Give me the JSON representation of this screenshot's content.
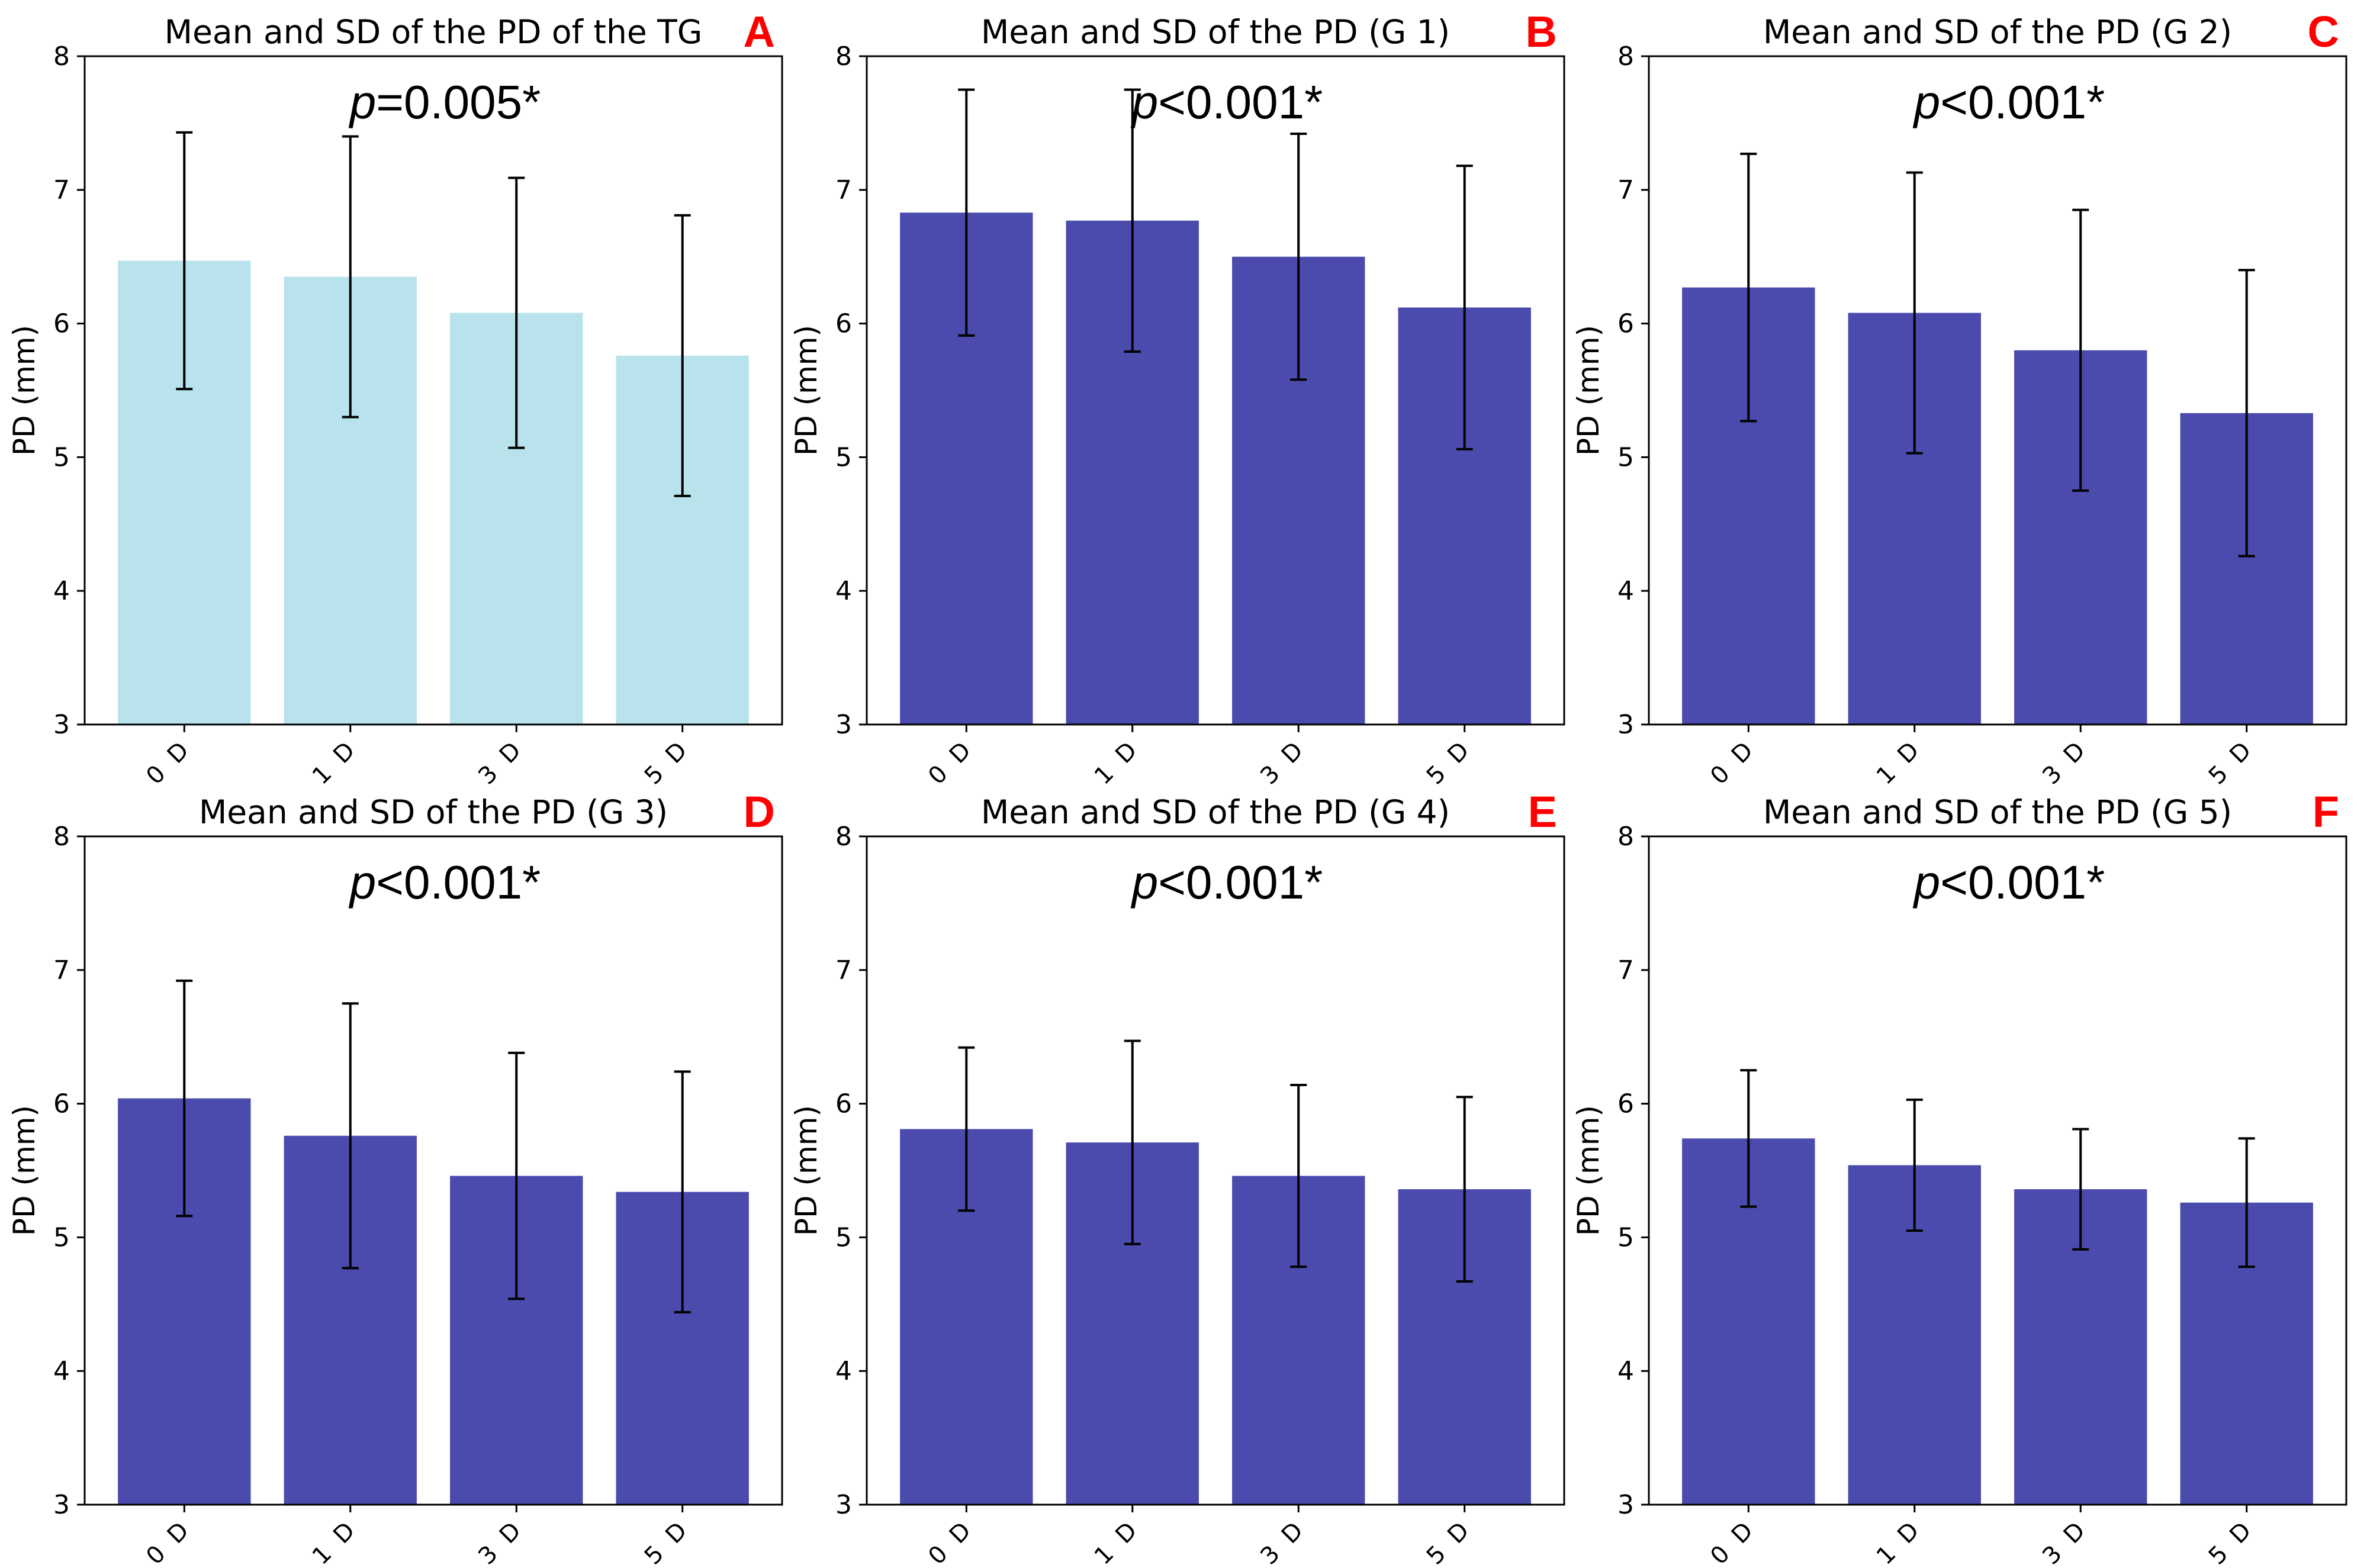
{
  "chart_data": [
    {
      "type": "bar",
      "panel_label": "A",
      "title": "Mean and SD of the PD of the TG",
      "annotation": {
        "italic": "p",
        "rest": "=0.005*"
      },
      "categories": [
        "0 D",
        "1 D",
        "3 D",
        "5 D"
      ],
      "values": [
        6.47,
        6.35,
        6.08,
        5.76
      ],
      "errors": [
        0.96,
        1.05,
        1.01,
        1.05
      ],
      "ylabel": "PD (mm)",
      "ylim": [
        3,
        8
      ],
      "yticks": [
        "3",
        "4",
        "5",
        "6",
        "7",
        "8"
      ],
      "bar_color": "#b9e3ec"
    },
    {
      "type": "bar",
      "panel_label": "B",
      "title": "Mean and SD of the PD (G 1)",
      "annotation": {
        "italic": "p",
        "rest": "<0.001*"
      },
      "categories": [
        "0 D",
        "1 D",
        "3 D",
        "5 D"
      ],
      "values": [
        6.83,
        6.77,
        6.5,
        6.12
      ],
      "errors": [
        0.92,
        0.98,
        0.92,
        1.06
      ],
      "ylabel": "PD (mm)",
      "ylim": [
        3,
        8
      ],
      "yticks": [
        "3",
        "4",
        "5",
        "6",
        "7",
        "8"
      ],
      "bar_color": "#4b4bad"
    },
    {
      "type": "bar",
      "panel_label": "C",
      "title": "Mean and SD of the PD (G 2)",
      "annotation": {
        "italic": "p",
        "rest": "<0.001*"
      },
      "categories": [
        "0 D",
        "1 D",
        "3 D",
        "5 D"
      ],
      "values": [
        6.27,
        6.08,
        5.8,
        5.33
      ],
      "errors": [
        1.0,
        1.05,
        1.05,
        1.07
      ],
      "ylabel": "PD (mm)",
      "ylim": [
        3,
        8
      ],
      "yticks": [
        "3",
        "4",
        "5",
        "6",
        "7",
        "8"
      ],
      "bar_color": "#4b4bad"
    },
    {
      "type": "bar",
      "panel_label": "D",
      "title": "Mean and SD of the PD (G 3)",
      "annotation": {
        "italic": "p",
        "rest": "<0.001*"
      },
      "categories": [
        "0 D",
        "1 D",
        "3 D",
        "5 D"
      ],
      "values": [
        6.04,
        5.76,
        5.46,
        5.34
      ],
      "errors": [
        0.88,
        0.99,
        0.92,
        0.9
      ],
      "ylabel": "PD (mm)",
      "ylim": [
        3,
        8
      ],
      "yticks": [
        "3",
        "4",
        "5",
        "6",
        "7",
        "8"
      ],
      "bar_color": "#4b4bad"
    },
    {
      "type": "bar",
      "panel_label": "E",
      "title": "Mean and SD of the PD (G 4)",
      "annotation": {
        "italic": "p",
        "rest": "<0.001*"
      },
      "categories": [
        "0 D",
        "1 D",
        "3 D",
        "5 D"
      ],
      "values": [
        5.81,
        5.71,
        5.46,
        5.36
      ],
      "errors": [
        0.61,
        0.76,
        0.68,
        0.69
      ],
      "ylabel": "PD (mm)",
      "ylim": [
        3,
        8
      ],
      "yticks": [
        "3",
        "4",
        "5",
        "6",
        "7",
        "8"
      ],
      "bar_color": "#4b4bad"
    },
    {
      "type": "bar",
      "panel_label": "F",
      "title": "Mean and SD of the PD (G 5)",
      "annotation": {
        "italic": "p",
        "rest": "<0.001*"
      },
      "categories": [
        "0 D",
        "1 D",
        "3 D",
        "5 D"
      ],
      "values": [
        5.74,
        5.54,
        5.36,
        5.26
      ],
      "errors": [
        0.51,
        0.49,
        0.45,
        0.48
      ],
      "ylabel": "PD (mm)",
      "ylim": [
        3,
        8
      ],
      "yticks": [
        "3",
        "4",
        "5",
        "6",
        "7",
        "8"
      ],
      "bar_color": "#4b4bad"
    }
  ]
}
